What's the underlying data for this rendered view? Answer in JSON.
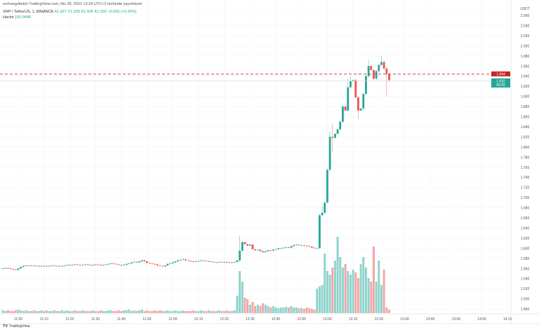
{
  "header": {
    "published": "serhangultekin TradingView.com, Nis 30, 2021 13:24 UTC+2 tarihinde yayımlandı"
  },
  "legend": {
    "symbol": "XRP / TetherUS, 1, BINANCE",
    "open": "A1.927",
    "high": "Y1.938",
    "low": "D1.926",
    "close": "K1.932",
    "change": "+0.005 (+0.26%)",
    "volume_label": "Hacim",
    "volume_value": "150.944K"
  },
  "footer": {
    "brand": "TradingView"
  },
  "colors": {
    "up": "#26a69a",
    "down": "#ef5350",
    "up_volume": "#90d4cc",
    "down_volume": "#f5a6a6",
    "grid": "#f0f3fa"
  },
  "chart_data": {
    "type": "candlestick",
    "currency": "USDT",
    "ylim": [
      1.47,
      2.066
    ],
    "y_ticks": [
      "2.060",
      "2.040",
      "2.020",
      "2.000",
      "1.980",
      "1.960",
      "1.940",
      "1.920",
      "1.900",
      "1.880",
      "1.860",
      "1.840",
      "1.820",
      "1.800",
      "1.780",
      "1.760",
      "1.740",
      "1.720",
      "1.700",
      "1.680",
      "1.660",
      "1.640",
      "1.620",
      "1.600",
      "1.580",
      "1.560",
      "1.540",
      "1.520",
      "1.500",
      "1.480"
    ],
    "x_ticks": [
      "11:00",
      "11:10",
      "11:20",
      "11:30",
      "11:40",
      "11:50",
      "12:00",
      "12:10",
      "12:20",
      "12:30",
      "12:40",
      "12:50",
      "13:00",
      "13:10",
      "13:20",
      "13:30",
      "13:40",
      "13:50",
      "14:00",
      "14:10"
    ],
    "start_time": "10:54",
    "interval_minutes": 1,
    "closes": [
      1.56,
      1.561,
      1.56,
      1.559,
      1.558,
      1.557,
      1.56,
      1.563,
      1.565,
      1.566,
      1.565,
      1.566,
      1.565,
      1.565,
      1.564,
      1.565,
      1.565,
      1.564,
      1.565,
      1.566,
      1.565,
      1.565,
      1.564,
      1.565,
      1.566,
      1.567,
      1.566,
      1.567,
      1.568,
      1.567,
      1.566,
      1.567,
      1.568,
      1.567,
      1.566,
      1.567,
      1.568,
      1.567,
      1.566,
      1.567,
      1.568,
      1.569,
      1.57,
      1.569,
      1.568,
      1.567,
      1.566,
      1.567,
      1.569,
      1.57,
      1.572,
      1.573,
      1.572,
      1.574,
      1.576,
      1.574,
      1.571,
      1.57,
      1.569,
      1.568,
      1.566,
      1.565,
      1.564,
      1.566,
      1.569,
      1.57,
      1.572,
      1.574,
      1.576,
      1.577,
      1.578,
      1.576,
      1.575,
      1.574,
      1.573,
      1.574,
      1.575,
      1.576,
      1.575,
      1.574,
      1.574,
      1.573,
      1.572,
      1.572,
      1.573,
      1.572,
      1.573,
      1.572,
      1.571,
      1.572,
      1.573,
      1.576,
      1.595,
      1.612,
      1.608,
      1.605,
      1.607,
      1.598,
      1.596,
      1.597,
      1.594,
      1.592,
      1.594,
      1.596,
      1.595,
      1.597,
      1.598,
      1.6,
      1.6,
      1.601,
      1.602,
      1.601,
      1.604,
      1.606,
      1.607,
      1.606,
      1.606,
      1.605,
      1.604,
      1.603,
      1.601,
      1.6,
      1.6,
      1.665,
      1.67,
      1.69,
      1.755,
      1.82,
      1.818,
      1.826,
      1.835,
      1.85,
      1.88,
      1.872,
      1.918,
      1.93,
      1.932,
      1.898,
      1.872,
      1.876,
      1.905,
      1.94,
      1.96,
      1.952,
      1.935,
      1.95,
      1.962,
      1.968,
      1.955,
      1.944,
      1.932
    ],
    "wick_extremes": {
      "12:26": {
        "high": 1.625
      },
      "12:27": {
        "high": 1.615
      },
      "12:57": {
        "low": 1.598
      },
      "12:58": {
        "high": 1.685
      },
      "13:00": {
        "low": 1.715
      },
      "13:01": {
        "high": 1.83
      },
      "13:02": {
        "high": 1.845,
        "low": 1.79
      },
      "13:08": {
        "high": 1.935
      },
      "13:09": {
        "high": 1.94
      },
      "13:12": {
        "low": 1.855
      },
      "13:16": {
        "high": 1.972
      },
      "13:21": {
        "high": 1.98
      },
      "13:23": {
        "low": 1.9
      }
    },
    "volumes": [
      4,
      3,
      4,
      3,
      3,
      4,
      5,
      4,
      3,
      4,
      3,
      3,
      4,
      3,
      3,
      4,
      3,
      4,
      3,
      3,
      4,
      3,
      3,
      4,
      3,
      4,
      3,
      3,
      4,
      3,
      3,
      4,
      3,
      3,
      3,
      4,
      3,
      3,
      4,
      3,
      3,
      4,
      4,
      3,
      3,
      4,
      3,
      4,
      4,
      5,
      3,
      4,
      3,
      4,
      5,
      3,
      4,
      3,
      3,
      4,
      3,
      4,
      3,
      3,
      4,
      3,
      3,
      4,
      3,
      3,
      4,
      3,
      3,
      3,
      4,
      3,
      3,
      4,
      3,
      3,
      4,
      3,
      3,
      3,
      4,
      3,
      3,
      4,
      3,
      3,
      4,
      25,
      60,
      45,
      22,
      20,
      12,
      16,
      10,
      12,
      10,
      14,
      12,
      10,
      8,
      10,
      8,
      7,
      8,
      8,
      9,
      8,
      10,
      8,
      8,
      7,
      7,
      6,
      8,
      7,
      6,
      5,
      35,
      38,
      40,
      85,
      60,
      55,
      65,
      75,
      109,
      80,
      65,
      70,
      60,
      55,
      62,
      58,
      50,
      70,
      80,
      65,
      50,
      45,
      95,
      45,
      75,
      40,
      62,
      8,
      5
    ],
    "last_price": "1.932",
    "last_price_countdown": "00:42",
    "reference_line_price": "1.944"
  }
}
